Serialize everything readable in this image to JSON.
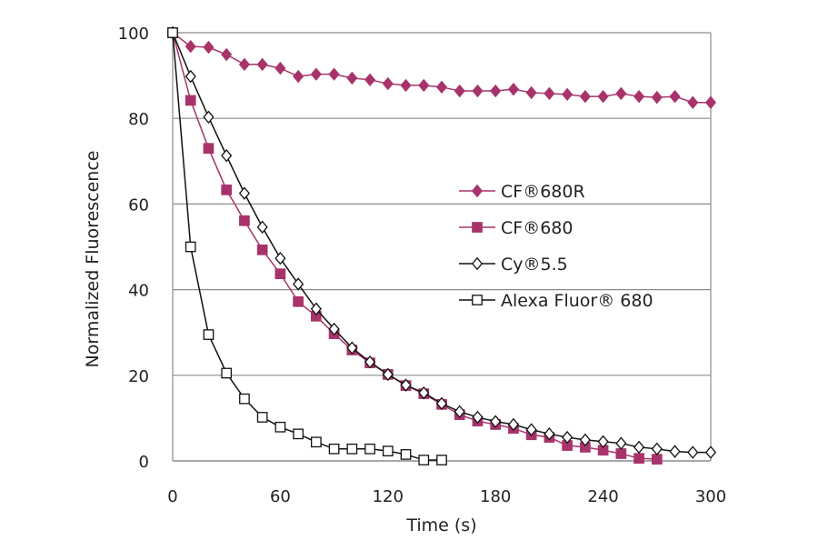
{
  "chart_data": {
    "type": "line",
    "title": "",
    "xlabel": "Time (s)",
    "ylabel": "Normalized Fluorescence",
    "xlim": [
      0,
      300
    ],
    "ylim": [
      0,
      100
    ],
    "xticks": [
      "0",
      "60",
      "120",
      "180",
      "240",
      "300"
    ],
    "yticks": [
      "0",
      "20",
      "40",
      "60",
      "80",
      "100"
    ],
    "grid": "horizontal",
    "legend_placement": "center-right",
    "series": [
      {
        "name": "CF®680R",
        "color": "#a8336b",
        "marker": "filled-diamond",
        "x": [
          0,
          10,
          20,
          30,
          40,
          50,
          60,
          70,
          80,
          90,
          100,
          110,
          120,
          130,
          140,
          150,
          160,
          170,
          180,
          190,
          200,
          210,
          220,
          230,
          240,
          250,
          260,
          270,
          280,
          290,
          300
        ],
        "y": [
          100,
          96.8,
          96.6,
          94.9,
          92.6,
          92.6,
          91.7,
          89.8,
          90.3,
          90.3,
          89.4,
          89.0,
          88.1,
          87.7,
          87.7,
          87.3,
          86.4,
          86.4,
          86.4,
          86.8,
          86.0,
          85.8,
          85.6,
          85.1,
          85.1,
          85.8,
          85.1,
          84.9,
          85.1,
          83.7,
          83.7
        ]
      },
      {
        "name": "CF®680",
        "color": "#a8336b",
        "marker": "filled-square",
        "x": [
          0,
          10,
          20,
          30,
          40,
          50,
          60,
          70,
          80,
          90,
          100,
          110,
          120,
          130,
          140,
          150,
          160,
          170,
          180,
          190,
          200,
          210,
          220,
          230,
          240,
          250,
          260,
          270
        ],
        "y": [
          100,
          84.2,
          73.0,
          63.3,
          56.1,
          49.3,
          43.7,
          37.2,
          33.8,
          29.7,
          25.9,
          22.9,
          20.2,
          17.6,
          15.7,
          13.2,
          10.8,
          9.3,
          8.5,
          7.6,
          6.1,
          5.5,
          3.6,
          3.2,
          2.5,
          1.7,
          0.6,
          0.4
        ]
      },
      {
        "name": "Cy®5.5",
        "color": "#111111",
        "marker": "open-diamond",
        "x": [
          0,
          10,
          20,
          30,
          40,
          50,
          60,
          70,
          80,
          90,
          100,
          110,
          120,
          130,
          140,
          150,
          160,
          170,
          180,
          190,
          200,
          210,
          220,
          230,
          240,
          250,
          260,
          270,
          280,
          290,
          300
        ],
        "y": [
          100,
          89.8,
          80.3,
          71.3,
          62.5,
          54.6,
          47.3,
          41.3,
          35.5,
          30.8,
          26.4,
          23.1,
          20.2,
          17.7,
          15.9,
          13.4,
          11.5,
          10.2,
          9.2,
          8.5,
          7.3,
          6.3,
          5.5,
          4.9,
          4.5,
          4.1,
          3.2,
          2.8,
          2.2,
          2.0,
          2.0
        ]
      },
      {
        "name": "Alexa Fluor® 680",
        "color": "#111111",
        "marker": "open-square",
        "x": [
          0,
          10,
          20,
          30,
          40,
          50,
          60,
          70,
          80,
          90,
          100,
          110,
          120,
          130,
          140,
          150
        ],
        "y": [
          100,
          50.0,
          29.5,
          20.5,
          14.5,
          10.2,
          7.9,
          6.3,
          4.4,
          2.8,
          2.8,
          2.8,
          2.3,
          1.5,
          0.2,
          0.2
        ]
      }
    ]
  }
}
